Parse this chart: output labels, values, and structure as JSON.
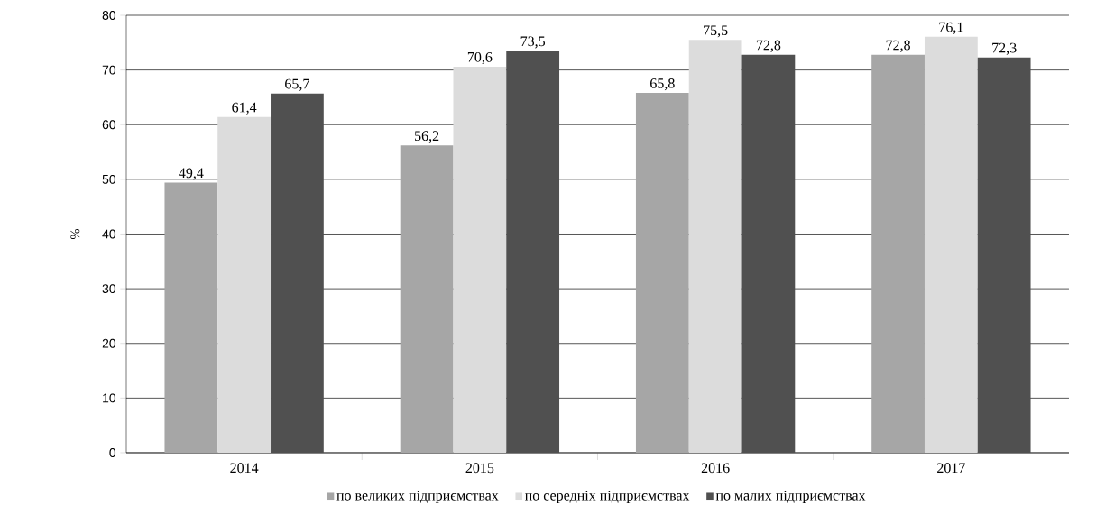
{
  "chart_data": {
    "type": "bar",
    "ylabel": "%",
    "categories": [
      "2014",
      "2015",
      "2016",
      "2017"
    ],
    "series": [
      {
        "name": "по великих підприємствах",
        "color": "#a6a6a6",
        "values": [
          49.4,
          56.2,
          65.8,
          72.8
        ],
        "value_labels": [
          "49,4",
          "56,2",
          "65,8",
          "72,8"
        ]
      },
      {
        "name": "по середніх підприємствах",
        "color": "#dcdcdc",
        "values": [
          61.4,
          70.6,
          75.5,
          76.1
        ],
        "value_labels": [
          "61,4",
          "70,6",
          "75,5",
          "76,1"
        ]
      },
      {
        "name": "по малих підприємствах",
        "color": "#505050",
        "values": [
          65.7,
          73.5,
          72.8,
          72.3
        ],
        "value_labels": [
          "65,7",
          "73,5",
          "72,8",
          "72,3"
        ]
      }
    ],
    "ylim": [
      0,
      80
    ],
    "yticks": [
      0,
      10,
      20,
      30,
      40,
      50,
      60,
      70,
      80
    ],
    "grid": "y",
    "legend": "bottom"
  }
}
